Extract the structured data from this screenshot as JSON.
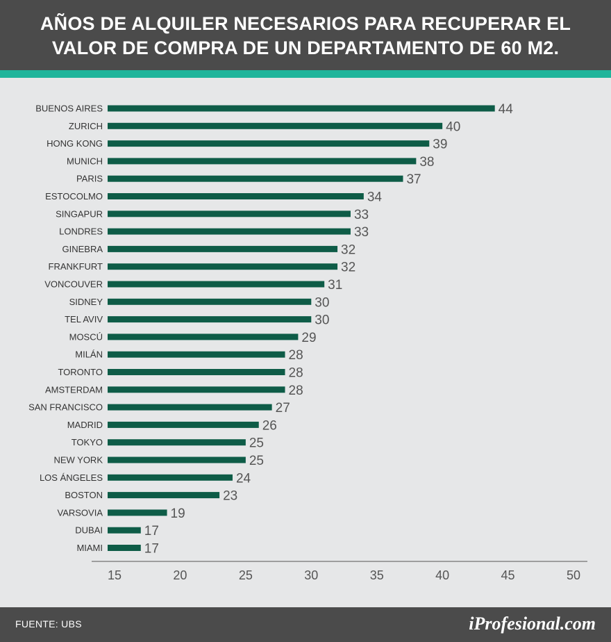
{
  "header": {
    "title_line1": "AÑOS DE ALQUILER NECESARIOS PARA RECUPERAR EL",
    "title_line2": "VALOR DE COMPRA DE UN DEPARTAMENTO DE 60 M2."
  },
  "footer": {
    "source": "FUENTE:  UBS",
    "brand": "iProfesional.com"
  },
  "colors": {
    "bar": "#0e5c47",
    "header_bg": "#4b4b4b",
    "accent": "#1fb59b",
    "background": "#e6e7e8"
  },
  "chart_data": {
    "type": "bar",
    "orientation": "horizontal",
    "title": "AÑOS DE ALQUILER NECESARIOS PARA RECUPERAR EL VALOR DE COMPRA DE UN DEPARTAMENTO DE 60 M2.",
    "categories": [
      "BUENOS AIRES",
      "ZURICH",
      "HONG KONG",
      "MUNICH",
      "PARIS",
      "ESTOCOLMO",
      "SINGAPUR",
      "LONDRES",
      "GINEBRA",
      "FRANKFURT",
      "VONCOUVER",
      "SIDNEY",
      "TEL AVIV",
      "MOSCÚ",
      "MILÁN",
      "TORONTO",
      "AMSTERDAM",
      "SAN FRANCISCO",
      "MADRID",
      "TOKYO",
      "NEW YORK",
      "LOS ÁNGELES",
      "BOSTON",
      "VARSOVIA",
      "DUBAI",
      "MIAMI"
    ],
    "values": [
      44,
      40,
      39,
      38,
      37,
      34,
      33,
      33,
      32,
      32,
      31,
      30,
      30,
      29,
      28,
      28,
      28,
      27,
      26,
      25,
      25,
      24,
      23,
      19,
      17,
      17
    ],
    "xlim": [
      15,
      50
    ],
    "xticks": [
      15,
      20,
      25,
      30,
      35,
      40,
      45,
      50
    ],
    "xlabel": "",
    "ylabel": "",
    "grid": false,
    "data_labels": true
  }
}
